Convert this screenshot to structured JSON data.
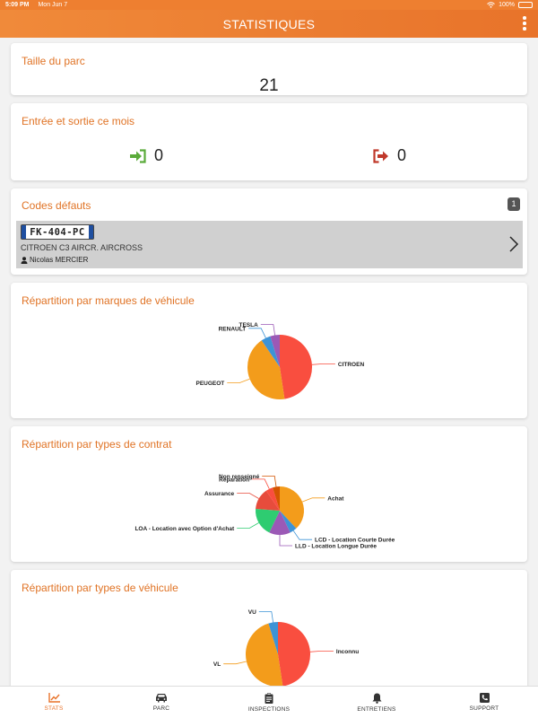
{
  "status": {
    "time": "5:09 PM",
    "date": "Mon Jun 7",
    "battery": "100%"
  },
  "header": {
    "title": "STATISTIQUES"
  },
  "fleet": {
    "title": "Taille du parc",
    "count": "21"
  },
  "movements": {
    "title": "Entrée et sortie ce mois",
    "in_count": "0",
    "out_count": "0"
  },
  "fault_codes": {
    "title": "Codes défauts",
    "badge": "1",
    "items": [
      {
        "plate": "FK-404-PC",
        "model": "CITROEN C3 AIRCR. AIRCROSS",
        "driver": "Nicolas MERCIER"
      }
    ]
  },
  "charts": [
    {
      "type": "pie",
      "title": "Répartition par marques de véhicule",
      "categories": [
        "CITROEN",
        "PEUGEOT",
        "RENAULT",
        "TESLA"
      ],
      "values": [
        10,
        9,
        1,
        1
      ],
      "colors": [
        "#f94e3f",
        "#f39c1b",
        "#3d93d6",
        "#9b59b6"
      ],
      "legend": "callout"
    },
    {
      "type": "pie",
      "title": "Répartition par types de contrat",
      "categories": [
        "Achat",
        "LCD - Location Courte Durée",
        "LLD - Location Longue Durée",
        "LOA - Location avec Option d'Achat",
        "Assurance",
        "Réparation",
        "Non renseigné"
      ],
      "values": [
        8,
        1,
        3,
        4,
        3,
        1,
        1
      ],
      "colors": [
        "#f39c1b",
        "#3d93d6",
        "#9b59b6",
        "#2ecc71",
        "#e74c3c",
        "#f94e3f",
        "#d35400"
      ],
      "legend": "callout"
    },
    {
      "type": "pie",
      "title": "Répartition par types de véhicule",
      "categories": [
        "Inconnu",
        "VL",
        "VU"
      ],
      "values": [
        10,
        10,
        1
      ],
      "colors": [
        "#f94e3f",
        "#f39c1b",
        "#3d93d6"
      ],
      "legend": "callout"
    }
  ],
  "nav": {
    "items": [
      {
        "label": "STATS",
        "icon": "chart-line-icon"
      },
      {
        "label": "PARC",
        "icon": "car-icon"
      },
      {
        "label": "INSPECTIONS",
        "icon": "clipboard-icon"
      },
      {
        "label": "ENTRETIENS",
        "icon": "bell-icon"
      },
      {
        "label": "SUPPORT",
        "icon": "phone-icon"
      }
    ],
    "active_color": "#e8732a",
    "inactive_color": "#333333"
  }
}
